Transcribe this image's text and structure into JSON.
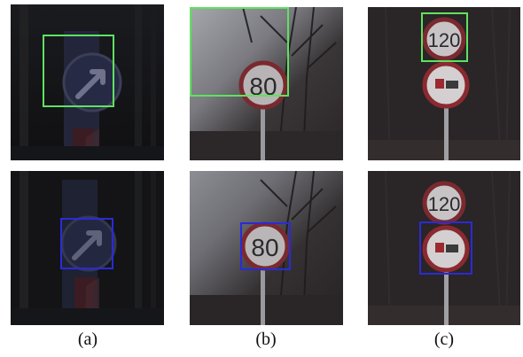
{
  "figure": {
    "captions": [
      "(a)",
      "(b)",
      "(c)"
    ]
  },
  "signs": {
    "b_speed": "80",
    "c_speed": "120"
  },
  "box_colors": {
    "top_row": "#5fe25f",
    "bottom_row": "#2a2ad8"
  }
}
